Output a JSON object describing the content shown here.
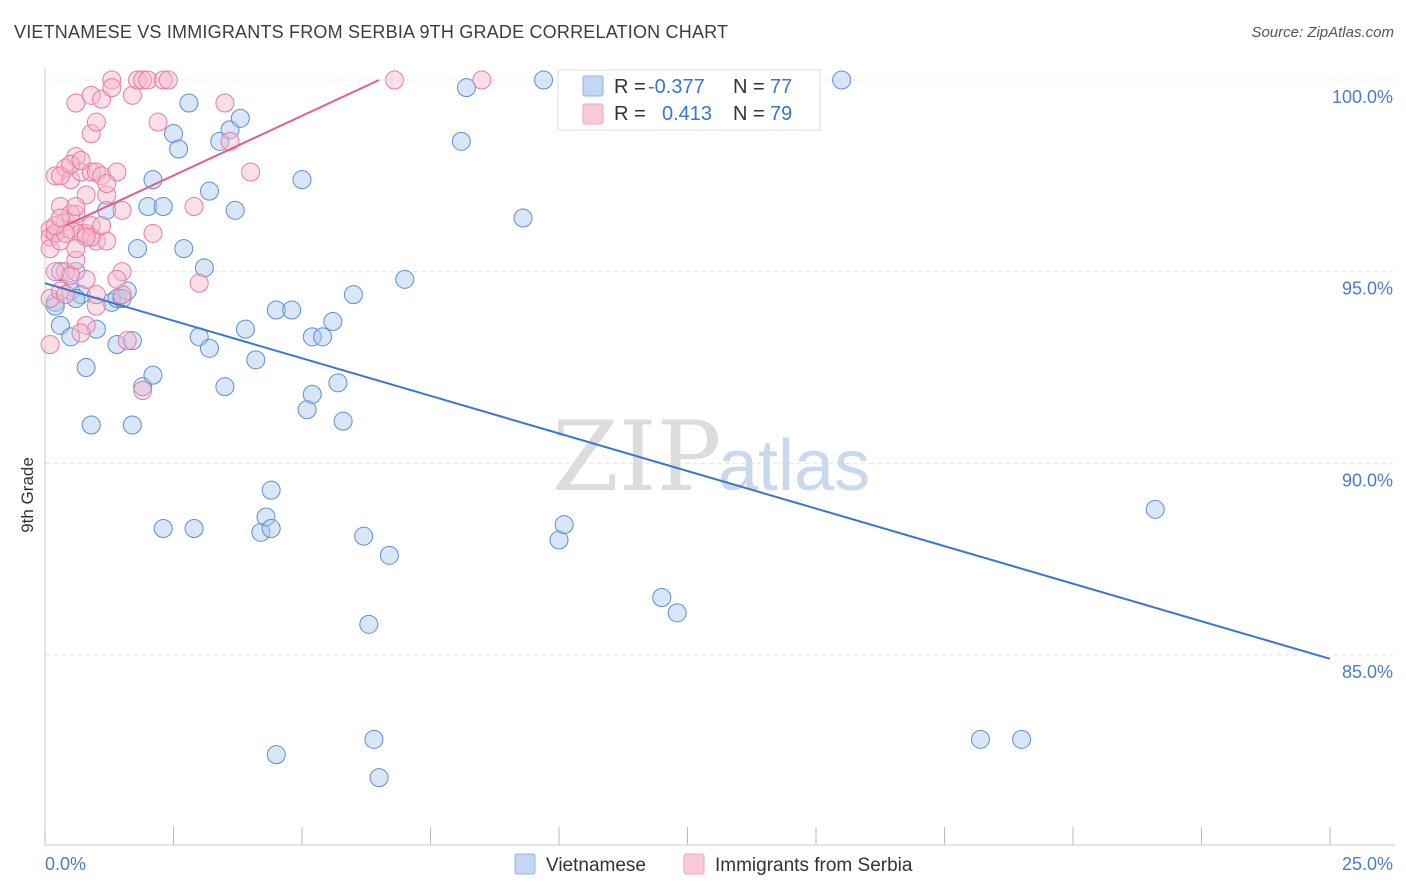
{
  "header": {
    "title": "VIETNAMESE VS IMMIGRANTS FROM SERBIA 9TH GRADE CORRELATION CHART",
    "source": "Source: ZipAtlas.com"
  },
  "watermark": {
    "zip": "ZIP",
    "atlas": "atlas"
  },
  "legend": {
    "r_label": "R =",
    "n_label": "N =",
    "rows": [
      {
        "name": "Vietnamese",
        "r": "-0.377",
        "n": "77",
        "color": "#8fb4e8"
      },
      {
        "name": "Immigrants from Serbia",
        "r": "0.413",
        "n": "79",
        "color": "#f4a6bf"
      }
    ]
  },
  "chart_data": {
    "type": "scatter",
    "title": "VIETNAMESE VS IMMIGRANTS FROM SERBIA 9TH GRADE CORRELATION CHART",
    "xlabel": "",
    "ylabel": "9th Grade",
    "xlim": [
      0,
      25
    ],
    "ylim": [
      80.5,
      100.8
    ],
    "x_tick_labels": [
      "0.0%",
      "25.0%"
    ],
    "y_ticks": [
      85,
      90,
      95,
      100
    ],
    "y_tick_labels": [
      "85.0%",
      "90.0%",
      "95.0%",
      "100.0%"
    ],
    "grid": true,
    "series": [
      {
        "name": "Vietnamese",
        "color": "#5b8fd6",
        "fill": "#aac8f0",
        "trend": {
          "x": [
            0,
            25
          ],
          "y": [
            94.7,
            84.9
          ],
          "color": "#3b78cc"
        },
        "points": [
          [
            0.2,
            94.2
          ],
          [
            0.3,
            93.6
          ],
          [
            0.3,
            95.0
          ],
          [
            0.5,
            94.5
          ],
          [
            0.5,
            93.3
          ],
          [
            0.6,
            95.0
          ],
          [
            0.7,
            94.4
          ],
          [
            0.8,
            92.5
          ],
          [
            0.9,
            91.0
          ],
          [
            1.0,
            93.5
          ],
          [
            1.2,
            96.6
          ],
          [
            1.3,
            94.2
          ],
          [
            1.4,
            94.3
          ],
          [
            1.4,
            93.1
          ],
          [
            1.6,
            94.5
          ],
          [
            1.7,
            93.2
          ],
          [
            1.7,
            91.0
          ],
          [
            1.8,
            95.6
          ],
          [
            1.9,
            92.0
          ],
          [
            2.0,
            96.7
          ],
          [
            2.1,
            97.4
          ],
          [
            2.1,
            92.3
          ],
          [
            2.3,
            96.7
          ],
          [
            2.3,
            88.3
          ],
          [
            2.5,
            98.6
          ],
          [
            2.6,
            98.2
          ],
          [
            2.7,
            95.6
          ],
          [
            2.8,
            99.4
          ],
          [
            2.9,
            88.3
          ],
          [
            3.0,
            93.3
          ],
          [
            3.1,
            95.1
          ],
          [
            3.2,
            93.0
          ],
          [
            3.2,
            97.1
          ],
          [
            3.4,
            98.4
          ],
          [
            3.5,
            92.0
          ],
          [
            3.6,
            98.7
          ],
          [
            3.7,
            96.6
          ],
          [
            3.8,
            99.0
          ],
          [
            3.9,
            93.5
          ],
          [
            4.1,
            92.7
          ],
          [
            4.2,
            88.2
          ],
          [
            4.3,
            88.6
          ],
          [
            4.4,
            88.3
          ],
          [
            4.4,
            89.3
          ],
          [
            4.5,
            82.4
          ],
          [
            4.5,
            94.0
          ],
          [
            4.8,
            94.0
          ],
          [
            5.0,
            97.4
          ],
          [
            5.1,
            91.4
          ],
          [
            5.2,
            91.8
          ],
          [
            5.2,
            93.3
          ],
          [
            5.4,
            93.3
          ],
          [
            5.6,
            93.7
          ],
          [
            5.7,
            92.1
          ],
          [
            5.8,
            91.1
          ],
          [
            6.0,
            94.4
          ],
          [
            6.2,
            88.1
          ],
          [
            6.3,
            85.8
          ],
          [
            6.4,
            82.8
          ],
          [
            6.5,
            81.8
          ],
          [
            6.7,
            87.6
          ],
          [
            7.0,
            94.8
          ],
          [
            8.1,
            98.4
          ],
          [
            8.2,
            99.8
          ],
          [
            9.3,
            96.4
          ],
          [
            9.7,
            100.0
          ],
          [
            10.0,
            88.0
          ],
          [
            10.1,
            88.4
          ],
          [
            12.0,
            86.5
          ],
          [
            12.3,
            86.1
          ],
          [
            15.5,
            100.0
          ],
          [
            19.0,
            82.8
          ],
          [
            21.6,
            88.8
          ],
          [
            18.2,
            82.8
          ],
          [
            0.2,
            94.1
          ],
          [
            0.6,
            94.3
          ],
          [
            1.5,
            94.3
          ]
        ]
      },
      {
        "name": "Immigrants from Serbia",
        "color": "#e97ba0",
        "fill": "#f7b9cd",
        "trend": {
          "x": [
            0.4,
            6.5
          ],
          "y": [
            96.2,
            100.0
          ],
          "color": "#e0608c"
        },
        "points": [
          [
            0.1,
            96.1
          ],
          [
            0.1,
            95.9
          ],
          [
            0.1,
            95.6
          ],
          [
            0.1,
            94.3
          ],
          [
            0.1,
            93.1
          ],
          [
            0.2,
            97.5
          ],
          [
            0.2,
            96.0
          ],
          [
            0.3,
            96.7
          ],
          [
            0.3,
            95.8
          ],
          [
            0.3,
            94.5
          ],
          [
            0.4,
            97.7
          ],
          [
            0.4,
            96.3
          ],
          [
            0.4,
            95.0
          ],
          [
            0.5,
            97.4
          ],
          [
            0.5,
            96.1
          ],
          [
            0.5,
            94.9
          ],
          [
            0.6,
            99.4
          ],
          [
            0.6,
            98.0
          ],
          [
            0.6,
            96.5
          ],
          [
            0.6,
            95.3
          ],
          [
            0.7,
            97.6
          ],
          [
            0.7,
            96.0
          ],
          [
            0.8,
            97.0
          ],
          [
            0.8,
            96.0
          ],
          [
            0.8,
            94.8
          ],
          [
            0.8,
            93.6
          ],
          [
            0.9,
            99.6
          ],
          [
            0.9,
            98.6
          ],
          [
            0.9,
            97.6
          ],
          [
            0.9,
            96.2
          ],
          [
            1.0,
            98.9
          ],
          [
            1.0,
            97.6
          ],
          [
            1.0,
            95.8
          ],
          [
            1.0,
            94.1
          ],
          [
            1.1,
            99.5
          ],
          [
            1.1,
            97.5
          ],
          [
            1.2,
            97.0
          ],
          [
            1.2,
            95.8
          ],
          [
            1.3,
            100.0
          ],
          [
            1.3,
            99.8
          ],
          [
            1.4,
            97.6
          ],
          [
            1.5,
            96.6
          ],
          [
            1.5,
            95.0
          ],
          [
            1.5,
            94.4
          ],
          [
            1.6,
            93.2
          ],
          [
            1.7,
            99.6
          ],
          [
            1.8,
            100.0
          ],
          [
            1.9,
            100.0
          ],
          [
            1.9,
            91.9
          ],
          [
            2.0,
            100.0
          ],
          [
            2.1,
            96.0
          ],
          [
            2.2,
            98.9
          ],
          [
            2.3,
            100.0
          ],
          [
            2.4,
            100.0
          ],
          [
            2.9,
            96.7
          ],
          [
            3.0,
            94.7
          ],
          [
            3.5,
            99.4
          ],
          [
            3.6,
            98.4
          ],
          [
            4.0,
            97.6
          ],
          [
            6.8,
            100.0
          ],
          [
            8.5,
            100.0
          ],
          [
            0.2,
            95.0
          ],
          [
            0.4,
            96.0
          ],
          [
            0.5,
            96.5
          ],
          [
            0.7,
            93.4
          ],
          [
            1.0,
            94.4
          ],
          [
            1.2,
            97.3
          ],
          [
            0.3,
            97.5
          ],
          [
            0.9,
            95.9
          ],
          [
            0.6,
            96.7
          ],
          [
            0.2,
            96.2
          ],
          [
            0.5,
            97.8
          ],
          [
            1.1,
            96.2
          ],
          [
            0.8,
            95.9
          ],
          [
            1.4,
            94.8
          ],
          [
            0.4,
            94.4
          ],
          [
            0.7,
            97.9
          ],
          [
            0.3,
            96.4
          ],
          [
            0.6,
            95.6
          ]
        ]
      }
    ]
  }
}
